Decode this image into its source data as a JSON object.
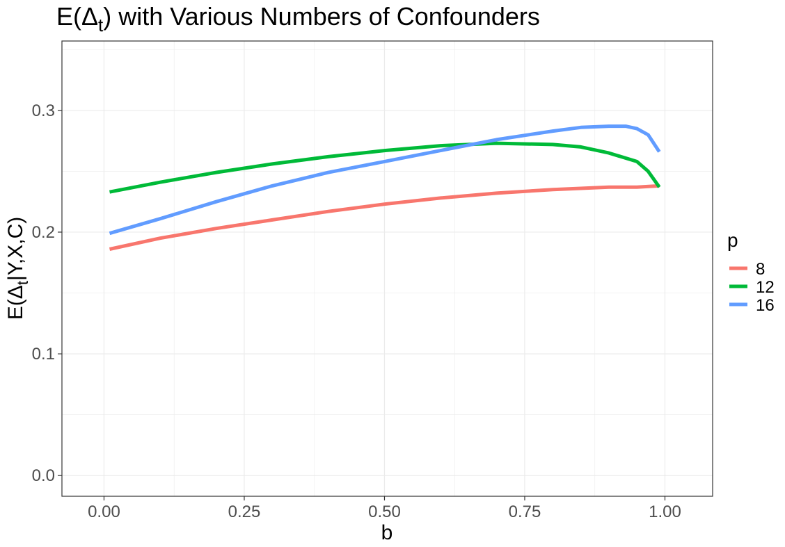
{
  "chart_data": {
    "type": "line",
    "title_prefix": "E(Δ",
    "title_sub": "t",
    "title_suffix": ") with Various Numbers of Confounders",
    "xlabel": "b",
    "ylabel_prefix": "E(Δ",
    "ylabel_sub": "t",
    "ylabel_suffix": "|Y,X,C)",
    "xlim": [
      -0.075,
      1.085
    ],
    "ylim": [
      -0.017,
      0.357
    ],
    "x_ticks": [
      0.0,
      0.25,
      0.5,
      0.75,
      1.0
    ],
    "x_tick_labels": [
      "0.00",
      "0.25",
      "0.50",
      "0.75",
      "1.00"
    ],
    "y_ticks": [
      0.0,
      0.1,
      0.2,
      0.3
    ],
    "y_tick_labels": [
      "0.0",
      "0.1",
      "0.2",
      "0.3"
    ],
    "grid": true,
    "legend": {
      "title": "p",
      "position": "right"
    },
    "series": [
      {
        "name": "8",
        "color": "#F8766D",
        "x": [
          0.01,
          0.1,
          0.2,
          0.3,
          0.4,
          0.5,
          0.6,
          0.7,
          0.8,
          0.9,
          0.95,
          0.99
        ],
        "y": [
          0.186,
          0.195,
          0.203,
          0.21,
          0.217,
          0.223,
          0.228,
          0.232,
          0.235,
          0.237,
          0.237,
          0.238
        ]
      },
      {
        "name": "12",
        "color": "#00BA38",
        "x": [
          0.01,
          0.1,
          0.2,
          0.3,
          0.4,
          0.5,
          0.6,
          0.7,
          0.8,
          0.85,
          0.9,
          0.95,
          0.97,
          0.99
        ],
        "y": [
          0.233,
          0.241,
          0.249,
          0.256,
          0.262,
          0.267,
          0.271,
          0.273,
          0.272,
          0.27,
          0.265,
          0.258,
          0.25,
          0.237
        ]
      },
      {
        "name": "16",
        "color": "#619CFF",
        "x": [
          0.01,
          0.1,
          0.2,
          0.3,
          0.4,
          0.5,
          0.6,
          0.7,
          0.8,
          0.85,
          0.9,
          0.93,
          0.95,
          0.97,
          0.99
        ],
        "y": [
          0.199,
          0.211,
          0.225,
          0.238,
          0.249,
          0.258,
          0.267,
          0.276,
          0.283,
          0.286,
          0.287,
          0.287,
          0.285,
          0.28,
          0.266
        ]
      }
    ]
  }
}
